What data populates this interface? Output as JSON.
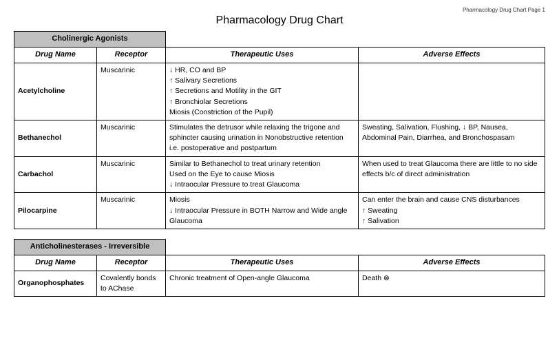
{
  "page_header": "Pharmacology Drug Chart Page 1",
  "title": "Pharmacology Drug Chart",
  "tables": [
    {
      "section": "Cholinergic Agonists",
      "columns": [
        "Drug Name",
        "Receptor",
        "Therapeutic Uses",
        "Adverse Effects"
      ],
      "rows": [
        {
          "drug": "Acetylcholine",
          "receptor": "Muscarinic",
          "uses": "↓ HR, CO and BP\n↑ Salivary Secretions\n↑ Secretions and Motility in the GIT\n↑ Bronchiolar Secretions\nMiosis (Constriction of the Pupil)",
          "adverse": ""
        },
        {
          "drug": "Bethanechol",
          "receptor": "Muscarinic",
          "uses": "Stimulates the detrusor while relaxing the trigone and sphincter causing urination in Nonobstructive retention i.e. postoperative and postpartum",
          "adverse": "Sweating, Salivation, Flushing, ↓ BP, Nausea, Abdominal Pain, Diarrhea, and Bronchospasam"
        },
        {
          "drug": "Carbachol",
          "receptor": "Muscarinic",
          "uses": "Similar to Bethanechol to treat urinary retention\nUsed on the Eye to cause Miosis\n↓ Intraocular Pressure to treat Glaucoma",
          "adverse": "When used to treat Glaucoma there are little to no side effects b/c of direct administration"
        },
        {
          "drug": "Pilocarpine",
          "receptor": "Muscarinic",
          "uses": "Miosis\n↓ Intraocular Pressure in BOTH Narrow and Wide angle Glaucoma",
          "adverse": "Can enter the brain and cause CNS disturbances\n↑ Sweating\n↑ Salivation"
        }
      ]
    },
    {
      "section": "Anticholinesterases - Irreversible",
      "columns": [
        "Drug Name",
        "Receptor",
        "Therapeutic Uses",
        "Adverse Effects"
      ],
      "rows": [
        {
          "drug": "Organophosphates",
          "receptor": "Covalently bonds to AChase",
          "uses": "Chronic treatment of Open-angle Glaucoma",
          "adverse": "Death ⊗"
        }
      ]
    }
  ]
}
